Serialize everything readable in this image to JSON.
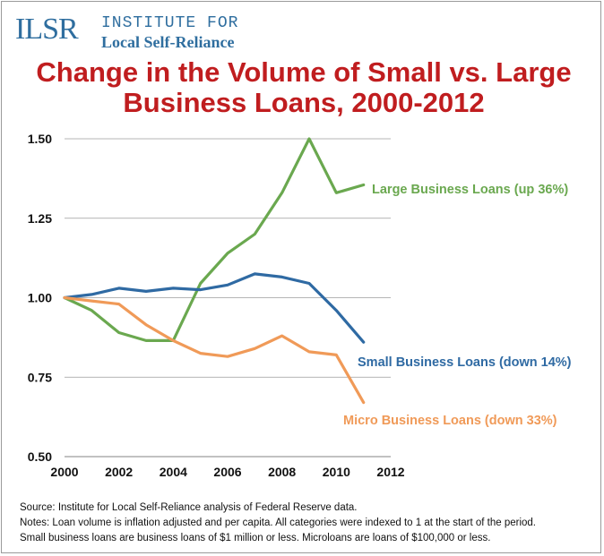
{
  "logo": {
    "mark": "ILSR",
    "line1": "INSTITUTE FOR",
    "line2": "Local Self-Reliance"
  },
  "title_line1": "Change in the Volume of Small vs. Large",
  "title_line2": "Business Loans, 2000-2012",
  "footer": {
    "source": "Source: Institute for Local Self-Reliance analysis of Federal Reserve data.",
    "notes1": "Notes: Loan volume is inflation adjusted and per capita.  All categories were indexed to 1 at the start of the period.",
    "notes2": "Small business loans are business loans of $1 million or less. Microloans are loans of $100,000 or less."
  },
  "colors": {
    "title": "#c01d1f",
    "logo": "#2f6e9f",
    "grid": "#9c9c9c",
    "large": "#6aa84f",
    "small": "#2f6aa3",
    "micro": "#f09a58"
  },
  "chart_data": {
    "type": "line",
    "title": "Change in the Volume of Small vs. Large Business Loans, 2000-2012",
    "xlabel": "",
    "ylabel": "",
    "xlim": [
      2000,
      2012
    ],
    "ylim": [
      0.5,
      1.5
    ],
    "grid": true,
    "x_ticks": [
      "2000",
      "2002",
      "2004",
      "2006",
      "2008",
      "2010",
      "2012"
    ],
    "y_ticks": [
      "1.50",
      "1.25",
      "1.00",
      "0.75",
      "0.50"
    ],
    "x": [
      2000,
      2001,
      2002,
      2003,
      2004,
      2005,
      2006,
      2007,
      2008,
      2009,
      2010,
      2011
    ],
    "series": [
      {
        "name": "Large Business Loans (up 36%)",
        "color": "#6aa84f",
        "values": [
          1.0,
          0.96,
          0.89,
          0.865,
          0.865,
          1.045,
          1.14,
          1.2,
          1.33,
          1.5,
          1.33,
          1.355
        ]
      },
      {
        "name": "Small Business Loans (down 14%)",
        "color": "#2f6aa3",
        "values": [
          1.0,
          1.01,
          1.03,
          1.02,
          1.03,
          1.025,
          1.04,
          1.075,
          1.065,
          1.045,
          0.96,
          0.86
        ]
      },
      {
        "name": "Micro Business Loans (down 33%)",
        "color": "#f09a58",
        "values": [
          1.0,
          0.99,
          0.98,
          0.915,
          0.865,
          0.825,
          0.815,
          0.84,
          0.88,
          0.83,
          0.82,
          0.67
        ]
      }
    ]
  }
}
